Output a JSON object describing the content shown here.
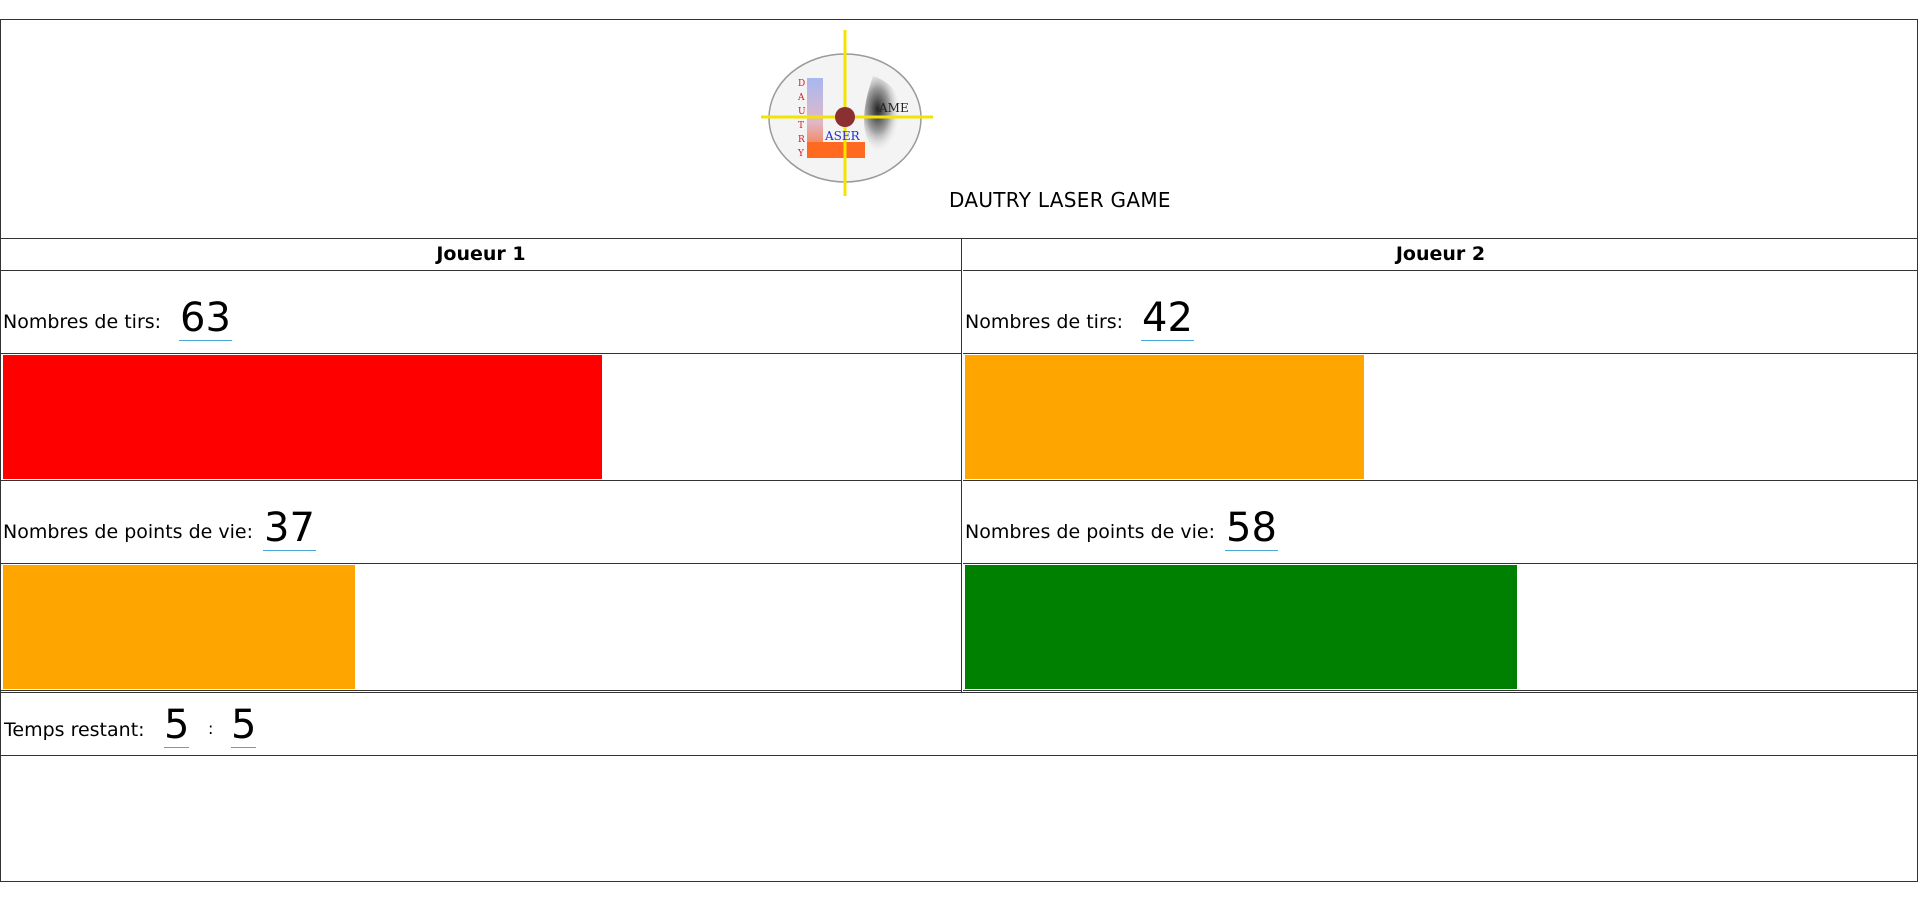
{
  "header": {
    "logo": {
      "vertical_word": [
        "D",
        "A",
        "U",
        "T",
        "R",
        "Y"
      ],
      "word_laser": "ASER",
      "word_game": "AME"
    },
    "site_title": "DAUTRY LASER GAME"
  },
  "players": [
    {
      "name": "Joueur 1",
      "shots_label": "Nombres de tirs:",
      "shots": "63",
      "shots_bar_fraction": 0.63,
      "shots_bar_color": "#ff0000",
      "health_label": "Nombres de points de vie:",
      "health": "37",
      "health_bar_fraction": 0.37,
      "health_bar_color": "#ffa500"
    },
    {
      "name": "Joueur 2",
      "shots_label": "Nombres de tirs:",
      "shots": "42",
      "shots_bar_fraction": 0.42,
      "shots_bar_color": "#ffa500",
      "health_label": "Nombres de points de vie:",
      "health": "58",
      "health_bar_fraction": 0.58,
      "health_bar_color": "#008000"
    }
  ],
  "timer": {
    "label": "Temps restant:",
    "minutes": "5",
    "separator": ":",
    "seconds": "5"
  }
}
